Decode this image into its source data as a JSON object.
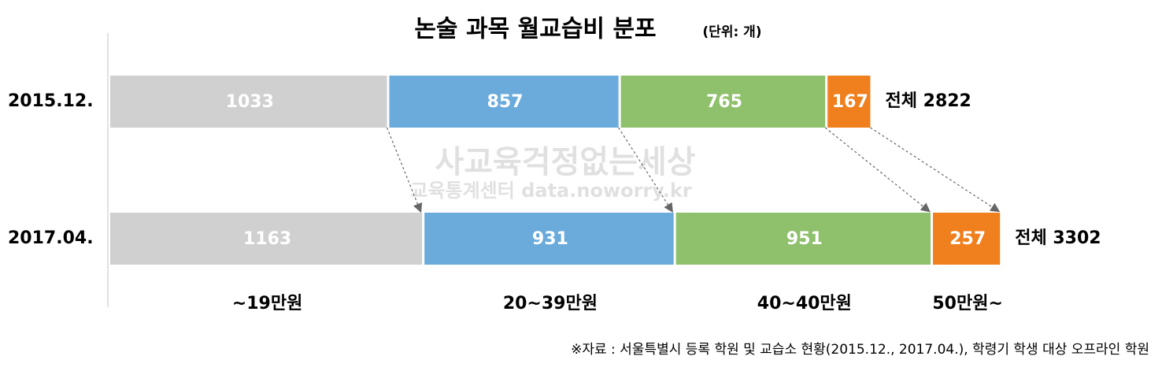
{
  "chart_data": {
    "type": "stacked-bar-horizontal",
    "title": "논술 과목 월교습비 분포",
    "subtitle": "(단위: 개)",
    "categories": [
      "2015.12.",
      "2017.04."
    ],
    "series": [
      {
        "name": "~19만원",
        "color": "#d0d0d0",
        "values": [
          1033,
          1163
        ]
      },
      {
        "name": "20~39만원",
        "color": "#6aabdc",
        "values": [
          857,
          931
        ]
      },
      {
        "name": "40~40만원",
        "color": "#8fc06c",
        "values": [
          765,
          951
        ]
      },
      {
        "name": "50만원~",
        "color": "#f07f1e",
        "values": [
          167,
          257
        ]
      }
    ],
    "total_labels": [
      "전체 2822",
      "전체 3302"
    ],
    "watermark": [
      "사교육걱정없는세상",
      "교육통계센터 data.noworry.kr"
    ],
    "source": "※자료 : 서울특별시 등록 학원 및 교습소 현황(2015.12., 2017.04.), 학령기 학생 대상 오프라인 학원"
  }
}
